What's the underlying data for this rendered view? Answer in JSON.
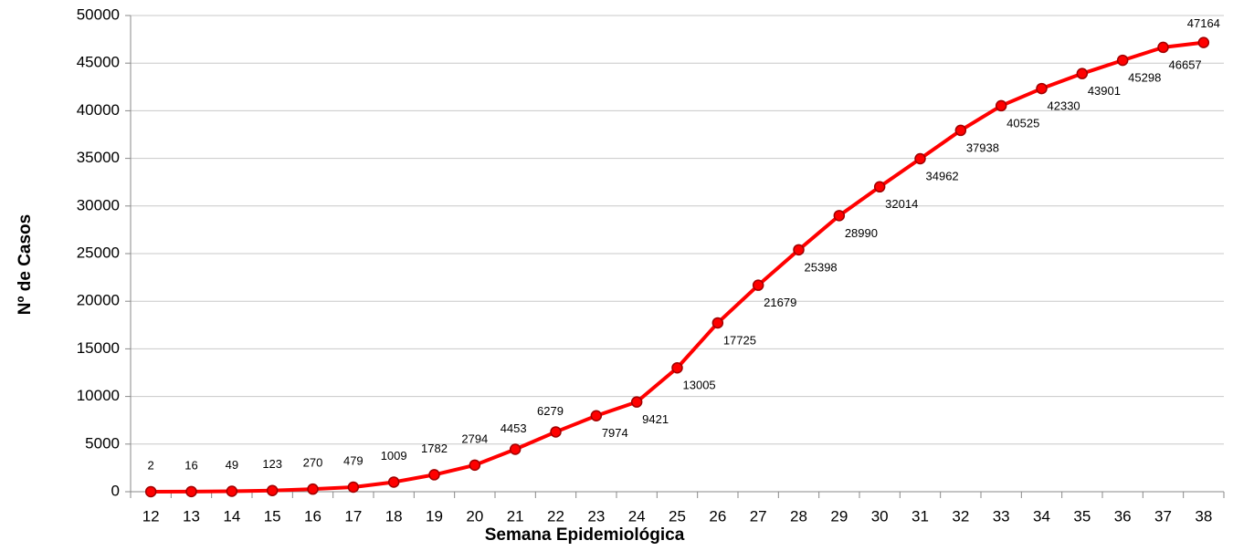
{
  "chart_data": {
    "type": "line",
    "x_label": "Semana Epidemiológica",
    "y_label": "Nº de Casos",
    "categories": [
      "12",
      "13",
      "14",
      "15",
      "16",
      "17",
      "18",
      "19",
      "20",
      "21",
      "22",
      "23",
      "24",
      "25",
      "26",
      "27",
      "28",
      "29",
      "30",
      "31",
      "32",
      "33",
      "34",
      "35",
      "36",
      "37",
      "38"
    ],
    "series": [
      {
        "color": "#ff0000",
        "values": [
          2,
          16,
          49,
          123,
          270,
          479,
          1009,
          1782,
          2794,
          4453,
          6279,
          7974,
          9421,
          13005,
          17725,
          21679,
          25398,
          28990,
          32014,
          34962,
          37938,
          40525,
          42330,
          43901,
          45298,
          46657,
          47164
        ]
      }
    ],
    "ylim": [
      0,
      50000
    ],
    "yticks": [
      0,
      5000,
      10000,
      15000,
      20000,
      25000,
      30000,
      35000,
      40000,
      45000,
      50000
    ],
    "grid": true
  }
}
